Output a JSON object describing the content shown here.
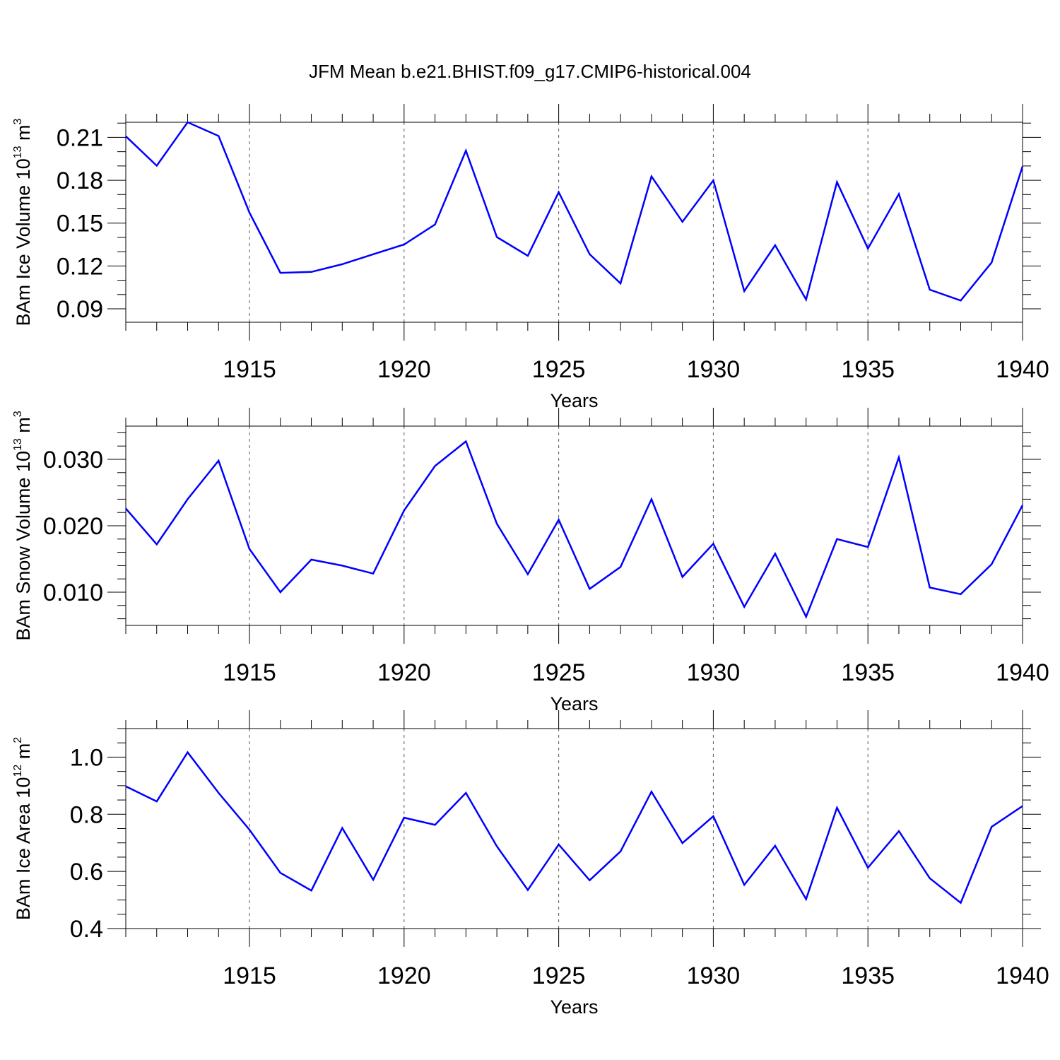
{
  "title": "JFM Mean b.e21.BHIST.f09_g17.CMIP6-historical.004",
  "chart_data": [
    {
      "type": "line",
      "name": "ice-volume",
      "ylabel_parts": {
        "text": "BAm Ice Volume 10",
        "exp": "13",
        "unit": " m",
        "unit_exp": "3"
      },
      "xlabel": "Years",
      "xlim": [
        1911,
        1940
      ],
      "ylim": [
        0.0806,
        0.2206
      ],
      "x_ticks": [
        1915,
        1920,
        1925,
        1930,
        1935,
        1940
      ],
      "x_tick_labels": [
        "1915",
        "1920",
        "1925",
        "1930",
        "1935",
        "1940"
      ],
      "y_ticks": [
        0.09,
        0.12,
        0.15,
        0.18,
        0.21
      ],
      "y_tick_labels": [
        "0.09",
        "0.12",
        "0.15",
        "0.18",
        "0.21"
      ],
      "y_minor_step": 0.01,
      "grid": "x-dashed",
      "color": "#0000ff",
      "x": [
        1911,
        1912,
        1913,
        1914,
        1915,
        1916,
        1917,
        1918,
        1919,
        1920,
        1921,
        1922,
        1923,
        1924,
        1925,
        1926,
        1927,
        1928,
        1929,
        1930,
        1931,
        1932,
        1933,
        1934,
        1935,
        1936,
        1937,
        1938,
        1939,
        1940
      ],
      "values": [
        0.2108,
        0.1902,
        0.2206,
        0.211,
        0.1574,
        0.1152,
        0.1158,
        0.1212,
        0.1282,
        0.135,
        0.149,
        0.2007,
        0.1402,
        0.1271,
        0.1716,
        0.1282,
        0.1078,
        0.1827,
        0.1509,
        0.1799,
        0.1024,
        0.1345,
        0.0965,
        0.1787,
        0.1322,
        0.1704,
        0.1034,
        0.0958,
        0.1224,
        0.1897
      ]
    },
    {
      "type": "line",
      "name": "snow-volume",
      "ylabel_parts": {
        "text": "BAm Snow Volume 10",
        "exp": "13",
        "unit": " m",
        "unit_exp": "3"
      },
      "xlabel": "Years",
      "xlim": [
        1911,
        1940
      ],
      "ylim": [
        0.005,
        0.035
      ],
      "x_ticks": [
        1915,
        1920,
        1925,
        1930,
        1935,
        1940
      ],
      "x_tick_labels": [
        "1915",
        "1920",
        "1925",
        "1930",
        "1935",
        "1940"
      ],
      "y_ticks": [
        0.01,
        0.02,
        0.03
      ],
      "y_tick_labels": [
        "0.010",
        "0.020",
        "0.030"
      ],
      "y_minor_step": 0.002,
      "grid": "x-dashed",
      "color": "#0000ff",
      "x": [
        1911,
        1912,
        1913,
        1914,
        1915,
        1916,
        1917,
        1918,
        1919,
        1920,
        1921,
        1922,
        1923,
        1924,
        1925,
        1926,
        1927,
        1928,
        1929,
        1930,
        1931,
        1932,
        1933,
        1934,
        1935,
        1936,
        1937,
        1938,
        1939,
        1940
      ],
      "values": [
        0.0226,
        0.0172,
        0.024,
        0.0298,
        0.0165,
        0.01,
        0.0149,
        0.014,
        0.0128,
        0.0223,
        0.029,
        0.0327,
        0.0203,
        0.0127,
        0.0209,
        0.0105,
        0.0138,
        0.024,
        0.0123,
        0.0173,
        0.0078,
        0.0158,
        0.0063,
        0.018,
        0.0168,
        0.0303,
        0.0107,
        0.0097,
        0.0142,
        0.0231
      ]
    },
    {
      "type": "line",
      "name": "ice-area",
      "ylabel_parts": {
        "text": "BAm Ice Area 10",
        "exp": "12",
        "unit": " m",
        "unit_exp": "2"
      },
      "xlabel": "Years",
      "xlim": [
        1911,
        1940
      ],
      "ylim": [
        0.4,
        1.1
      ],
      "x_ticks": [
        1915,
        1920,
        1925,
        1930,
        1935,
        1940
      ],
      "x_tick_labels": [
        "1915",
        "1920",
        "1925",
        "1930",
        "1935",
        "1940"
      ],
      "y_ticks": [
        0.4,
        0.6,
        0.8,
        1.0
      ],
      "y_tick_labels": [
        "0.4",
        "0.6",
        "0.8",
        "1.0"
      ],
      "y_minor_step": 0.05,
      "grid": "x-dashed",
      "color": "#0000ff",
      "x": [
        1911,
        1912,
        1913,
        1914,
        1915,
        1916,
        1917,
        1918,
        1919,
        1920,
        1921,
        1922,
        1923,
        1924,
        1925,
        1926,
        1927,
        1928,
        1929,
        1930,
        1931,
        1932,
        1933,
        1934,
        1935,
        1936,
        1937,
        1938,
        1939,
        1940
      ],
      "values": [
        0.898,
        0.845,
        1.017,
        0.875,
        0.746,
        0.595,
        0.533,
        0.752,
        0.571,
        0.788,
        0.763,
        0.875,
        0.688,
        0.535,
        0.694,
        0.569,
        0.67,
        0.879,
        0.699,
        0.793,
        0.553,
        0.69,
        0.503,
        0.823,
        0.613,
        0.741,
        0.576,
        0.49,
        0.756,
        0.829
      ]
    }
  ]
}
